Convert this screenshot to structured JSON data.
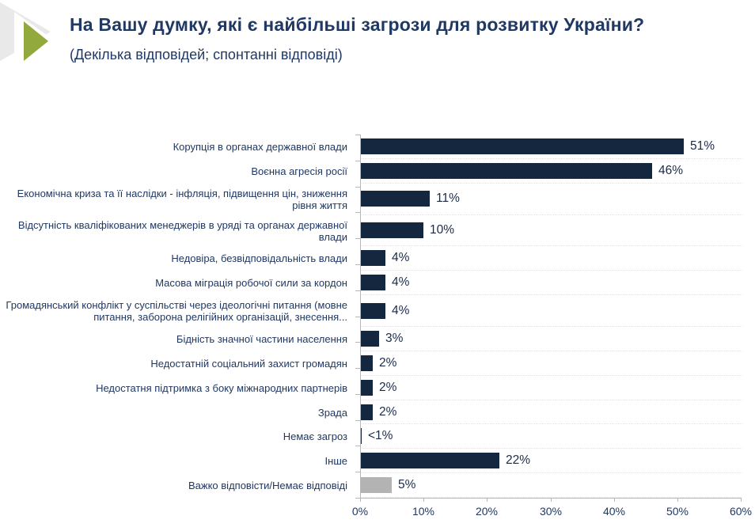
{
  "header": {
    "title": "На Вашу думку, які є найбільші загрози для розвитку України?",
    "subtitle": "(Декілька відповідей; спонтанні відповіді)"
  },
  "decoration": {
    "green_arrow_color": "#92a93d",
    "gray_shape_color": "#e9e9e9"
  },
  "colors": {
    "text": "#1f3864",
    "bar": "#14273f",
    "no_answer_bar": "#b3b3b3",
    "axis": "#b6b6b6"
  },
  "chart_data": {
    "type": "bar",
    "orientation": "horizontal",
    "title": "На Вашу думку, які є найбільші загрози для розвитку України?",
    "subtitle": "(Декілька відповідей; спонтанні відповіді)",
    "xlabel": "",
    "ylabel": "",
    "xlim": [
      0,
      60
    ],
    "grid": false,
    "legend": false,
    "x_tick_labels": [
      "0%",
      "10%",
      "20%",
      "30%",
      "40%",
      "50%",
      "60%"
    ],
    "categories": [
      "Корупція в органах державної влади",
      "Воєнна агресія росії",
      "Економічна криза та її наслідки - інфляція, підвищення цін, зниження рівня життя",
      "Відсутність кваліфікованих менеджерів в уряді та органах державної влади",
      "Недовіра, безвідповідальність влади",
      "Масова міграція робочої сили за кордон",
      "Громадянський конфлікт у суспільстві через ідеологічні питання (мовне питання, заборона релігійних організацій, знесення...",
      "Бідність значної частини населення",
      "Недостатній соціальний захист громадян",
      "Недостатня підтримка з боку міжнародних партнерів",
      "Зрада",
      "Немає загроз",
      "Інше",
      "Важко відповісти/Немає відповіді"
    ],
    "values": [
      51,
      46,
      11,
      10,
      4,
      4,
      4,
      3,
      2,
      2,
      2,
      0.3,
      22,
      5
    ],
    "value_labels": [
      "51%",
      "46%",
      "11%",
      "10%",
      "4%",
      "4%",
      "4%",
      "3%",
      "2%",
      "2%",
      "2%",
      "<1%",
      "22%",
      "5%"
    ],
    "bar_colors": [
      "#14273f",
      "#14273f",
      "#14273f",
      "#14273f",
      "#14273f",
      "#14273f",
      "#14273f",
      "#14273f",
      "#14273f",
      "#14273f",
      "#14273f",
      "#14273f",
      "#14273f",
      "#b3b3b3"
    ]
  }
}
